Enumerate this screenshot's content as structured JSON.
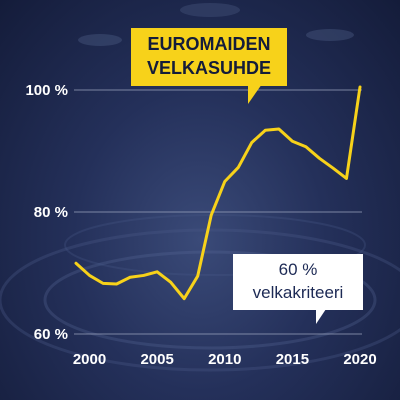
{
  "chart_data": {
    "type": "line",
    "title": "EUROMAIDEN VELKASUHDE",
    "title_lines": [
      "EUROMAIDEN",
      "VELKASUHDE"
    ],
    "x": [
      1999,
      2000,
      2001,
      2002,
      2003,
      2004,
      2005,
      2006,
      2007,
      2008,
      2009,
      2010,
      2011,
      2012,
      2013,
      2014,
      2015,
      2016,
      2017,
      2018,
      2019,
      2020
    ],
    "series": [
      {
        "values": [
          71.6,
          69.6,
          68.3,
          68.2,
          69.3,
          69.6,
          70.2,
          68.5,
          65.8,
          69.5,
          79.5,
          85.0,
          87.3,
          91.4,
          93.4,
          93.6,
          91.6,
          90.7,
          88.8,
          87.2,
          85.5,
          100.5
        ]
      }
    ],
    "xlim": [
      1999,
      2020
    ],
    "ylim": [
      60,
      100
    ],
    "x_ticks": [
      "2000",
      "2005",
      "2010",
      "2015",
      "2020"
    ],
    "x_tick_values": [
      2000,
      2005,
      2010,
      2015,
      2020
    ],
    "y_ticks": [
      "60 %",
      "80 %",
      "100 %"
    ],
    "y_tick_values": [
      60,
      80,
      100
    ],
    "reference_line": {
      "value": 60,
      "label_lines": [
        "60 %",
        "velkakriteeri"
      ]
    },
    "grid": true,
    "colors": {
      "line": "#f7d21a",
      "title_bg": "#f7d21a",
      "title_text": "#141c3a",
      "label_bg": "#ffffff",
      "label_text": "#1d2a55",
      "background": "#24305a",
      "grid": "#9aa3bd"
    }
  }
}
